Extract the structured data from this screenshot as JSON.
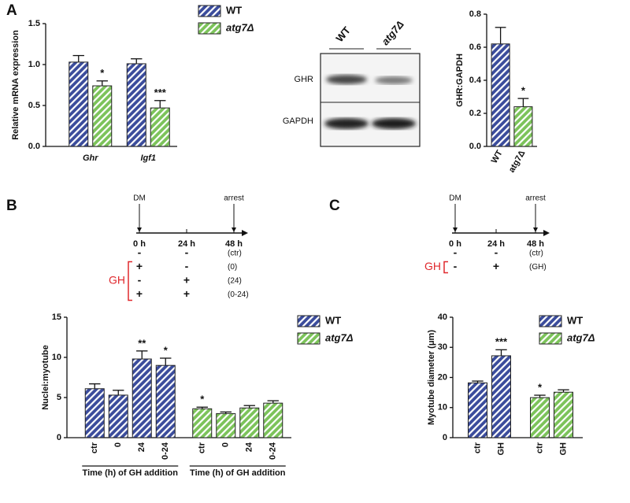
{
  "panel_labels": [
    "A",
    "B",
    "C"
  ],
  "blot": {
    "lanes": [
      "WT",
      "atg7Δ"
    ],
    "rows": [
      "GHR",
      "GAPDH"
    ]
  },
  "timeline_b": {
    "start": "DM",
    "end": "arrest",
    "times": [
      "0 h",
      "24 h",
      "48 h"
    ],
    "rows": [
      [
        "-",
        "-",
        "(ctr)"
      ],
      [
        "+",
        "-",
        "(0)"
      ],
      [
        "-",
        "+",
        "(24)"
      ],
      [
        "+",
        "+",
        "(0-24)"
      ]
    ],
    "factor": "GH"
  },
  "timeline_c": {
    "start": "DM",
    "end": "arrest",
    "times": [
      "0 h",
      "24 h",
      "48 h"
    ],
    "rows": [
      [
        "-",
        "-",
        "(ctr)"
      ],
      [
        "-",
        "+",
        "(GH)"
      ]
    ],
    "factor": "GH"
  },
  "chart_data": [
    {
      "type": "bar",
      "grouping": "category",
      "y_label": "Relative mRNA expression",
      "category_style": "italic",
      "categories": [
        "Ghr",
        "Igf1"
      ],
      "series": [
        {
          "name": "WT",
          "color": "#3b4c9c",
          "values": [
            1.03,
            1.01
          ],
          "errors": [
            0.08,
            0.06
          ],
          "annotations": [
            null,
            null
          ]
        },
        {
          "name": "atg7Δ",
          "name_style": "italic",
          "color": "#7cc35a",
          "values": [
            0.74,
            0.47
          ],
          "errors": [
            0.06,
            0.09
          ],
          "annotations": [
            "*",
            "***"
          ]
        }
      ],
      "ylim": [
        0,
        1.5
      ],
      "yticks": [
        {
          "value": 0,
          "label": "0.0"
        },
        0.5,
        {
          "value": 1,
          "label": "1.0"
        },
        1.5
      ],
      "legend": true
    },
    {
      "type": "bar",
      "grouping": "series",
      "y_label": "GHR:GAPDH",
      "categories": [
        "WT",
        "atg7Δ"
      ],
      "series": [
        {
          "colors": [
            "#3b4c9c",
            "#7cc35a"
          ],
          "values": [
            0.62,
            0.24
          ],
          "errors": [
            0.1,
            0.05
          ],
          "annotations": [
            null,
            "*"
          ]
        }
      ],
      "ylim": [
        0,
        0.8
      ],
      "yticks": [
        {
          "value": 0,
          "label": "0.0"
        },
        0.2,
        0.4,
        0.6,
        0.8
      ],
      "legend": false
    },
    {
      "type": "bar",
      "grouping": "series",
      "y_label": "Nuclei:myotube",
      "categories": [
        "ctr",
        "0",
        "24",
        "0-24"
      ],
      "series": [
        {
          "name": "WT",
          "color": "#3b4c9c",
          "values": [
            6.1,
            5.3,
            9.8,
            9.0
          ],
          "errors": [
            0.6,
            0.6,
            1.0,
            0.9
          ],
          "annotations": [
            null,
            null,
            "**",
            "*"
          ],
          "group_label": "Time (h) of GH addition"
        },
        {
          "name": "atg7Δ",
          "name_style": "italic",
          "color": "#7cc35a",
          "values": [
            3.6,
            3.0,
            3.7,
            4.3
          ],
          "errors": [
            0.2,
            0.2,
            0.3,
            0.3
          ],
          "annotations": [
            "*",
            null,
            null,
            null
          ],
          "group_label": "Time (h) of GH addition"
        }
      ],
      "ylim": [
        0,
        15
      ],
      "yticks": [
        0,
        5,
        10,
        15
      ],
      "legend": true
    },
    {
      "type": "bar",
      "grouping": "series",
      "y_label": "Myotube diameter (μm)",
      "categories": [
        "ctr",
        "GH"
      ],
      "series": [
        {
          "name": "WT",
          "color": "#3b4c9c",
          "values": [
            18.2,
            27.2
          ],
          "errors": [
            0.6,
            2.0
          ],
          "annotations": [
            null,
            "***"
          ]
        },
        {
          "name": "atg7Δ",
          "name_style": "italic",
          "color": "#7cc35a",
          "values": [
            13.3,
            15.1
          ],
          "errors": [
            0.8,
            0.8
          ],
          "annotations": [
            "*",
            null
          ]
        }
      ],
      "ylim": [
        0,
        40
      ],
      "yticks": [
        0,
        10,
        20,
        30,
        40
      ],
      "legend": true
    }
  ]
}
